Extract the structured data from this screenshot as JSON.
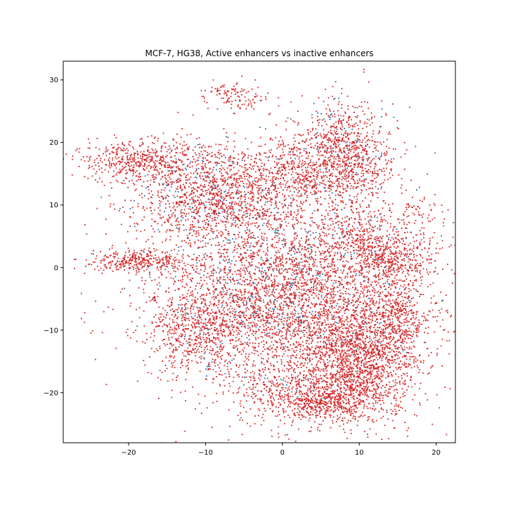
{
  "chart_data": {
    "type": "scatter",
    "title": "MCF-7, HG38, Active enhancers vs inactive enhancers",
    "xlabel": "",
    "ylabel": "",
    "xlim": [
      -28.5,
      22.5
    ],
    "ylim": [
      -28,
      33
    ],
    "xticks": [
      -20,
      -10,
      0,
      10,
      20
    ],
    "xtick_labels": [
      "−20",
      "−10",
      "0",
      "10",
      "20"
    ],
    "yticks": [
      -20,
      -10,
      0,
      10,
      20,
      30
    ],
    "ytick_labels": [
      "−20",
      "−10",
      "0",
      "10",
      "20",
      "30"
    ],
    "grid": false,
    "legend": "none",
    "series": [
      {
        "color": "#1f77b4",
        "clusters": [
          {
            "cx": 0,
            "cy": -4,
            "sx": 8,
            "sy": 8,
            "n": 500
          },
          {
            "cx": -10,
            "cy": 12,
            "sx": 5,
            "sy": 4,
            "n": 150
          },
          {
            "cx": 8,
            "cy": 18,
            "sx": 3,
            "sy": 4,
            "n": 100
          }
        ]
      },
      {
        "color": "#d62728",
        "clusters": [
          {
            "cx": 2,
            "cy": -5,
            "sx": 9,
            "sy": 8.5,
            "n": 4200
          },
          {
            "cx": 10,
            "cy": -15,
            "sx": 3.5,
            "sy": 4.5,
            "n": 1100
          },
          {
            "cx": 4,
            "cy": -20,
            "sx": 5,
            "sy": 2.5,
            "n": 550
          },
          {
            "cx": -9,
            "cy": 12,
            "sx": 5,
            "sy": 4,
            "n": 1200
          },
          {
            "cx": -19,
            "cy": 17,
            "sx": 3.5,
            "sy": 1.6,
            "n": 450
          },
          {
            "cx": 8,
            "cy": 18,
            "sx": 3,
            "sy": 4,
            "n": 900
          },
          {
            "cx": 1,
            "cy": 15,
            "sx": 2.5,
            "sy": 3,
            "n": 350
          },
          {
            "cx": -19,
            "cy": 1,
            "sx": 3,
            "sy": 0.8,
            "n": 320
          },
          {
            "cx": 14,
            "cy": 2,
            "sx": 3,
            "sy": 2,
            "n": 350
          },
          {
            "cx": -11,
            "cy": -9,
            "sx": 3,
            "sy": 3.5,
            "n": 500
          },
          {
            "cx": 15,
            "cy": -8,
            "sx": 2,
            "sy": 4,
            "n": 350
          },
          {
            "cx": -6,
            "cy": 27.5,
            "sx": 2,
            "sy": 1.2,
            "n": 120
          },
          {
            "cx": 10,
            "cy": 5,
            "sx": 2,
            "sy": 2,
            "n": 150
          },
          {
            "cx": 17,
            "cy": 9,
            "sx": 2.2,
            "sy": 1.5,
            "n": 60
          },
          {
            "cx": 5,
            "cy": -22,
            "sx": 2,
            "sy": 1,
            "n": 200
          }
        ]
      }
    ]
  }
}
